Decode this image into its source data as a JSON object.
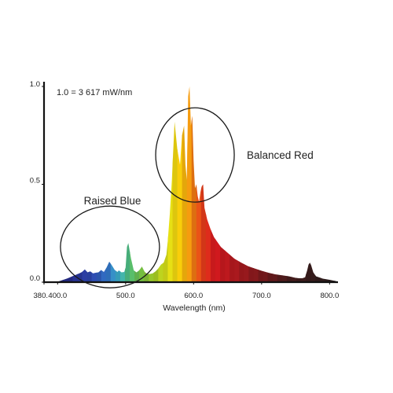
{
  "chart_data": {
    "type": "area",
    "title": "",
    "xlabel": "Wavelength (nm)",
    "ylabel": "",
    "xlim": [
      380,
      810
    ],
    "ylim": [
      0,
      1.0
    ],
    "x_ticks": [
      {
        "value": 380,
        "label": "380."
      },
      {
        "value": 400,
        "label": "400.0"
      },
      {
        "value": 500,
        "label": "500.0"
      },
      {
        "value": 600,
        "label": "600.0"
      },
      {
        "value": 700,
        "label": "700.0"
      },
      {
        "value": 800,
        "label": "800.0"
      }
    ],
    "y_ticks": [
      {
        "value": 0.0,
        "label": "0.0"
      },
      {
        "value": 0.5,
        "label": "0.5"
      },
      {
        "value": 1.0,
        "label": "1.0"
      }
    ],
    "scale_note": "1.0 = 3 617 mW/nm",
    "series": [
      {
        "x": [
          380,
          398,
          405,
          415,
          425,
          432,
          436,
          440,
          444,
          448,
          452,
          456,
          460,
          464,
          468,
          472,
          476,
          480,
          484,
          488,
          490,
          494,
          498,
          500,
          502,
          504,
          508,
          512,
          516,
          520,
          524,
          528,
          532,
          536,
          540,
          544,
          548,
          552,
          556,
          560,
          562,
          565,
          568,
          572,
          576,
          580,
          583,
          586,
          588,
          590,
          592,
          594,
          596,
          598,
          600,
          602,
          604,
          606,
          608,
          610,
          612,
          614,
          616,
          620,
          625,
          630,
          640,
          650,
          660,
          670,
          680,
          690,
          700,
          710,
          720,
          730,
          740,
          745,
          750,
          755,
          760,
          764,
          767,
          769,
          771,
          773,
          776,
          780,
          790,
          800,
          810
        ],
        "y": [
          0,
          0,
          0.008,
          0.02,
          0.035,
          0.045,
          0.052,
          0.065,
          0.05,
          0.055,
          0.045,
          0.048,
          0.05,
          0.062,
          0.052,
          0.075,
          0.105,
          0.085,
          0.062,
          0.052,
          0.06,
          0.05,
          0.052,
          0.075,
          0.18,
          0.2,
          0.12,
          0.06,
          0.05,
          0.06,
          0.08,
          0.052,
          0.042,
          0.042,
          0.045,
          0.055,
          0.07,
          0.09,
          0.1,
          0.14,
          0.21,
          0.35,
          0.52,
          0.82,
          0.68,
          0.6,
          0.75,
          0.8,
          0.6,
          0.52,
          0.95,
          1.0,
          0.8,
          0.85,
          0.62,
          0.48,
          0.5,
          0.44,
          0.41,
          0.46,
          0.49,
          0.5,
          0.38,
          0.32,
          0.27,
          0.23,
          0.18,
          0.15,
          0.12,
          0.1,
          0.082,
          0.07,
          0.058,
          0.048,
          0.04,
          0.035,
          0.03,
          0.026,
          0.022,
          0.02,
          0.02,
          0.025,
          0.06,
          0.09,
          0.1,
          0.085,
          0.05,
          0.03,
          0.018,
          0.012,
          0.005
        ]
      }
    ],
    "annotations": [
      {
        "text": "Raised Blue",
        "center_nm": 477,
        "center_value": 0.18
      },
      {
        "text": "Balanced Red",
        "center_nm": 602,
        "center_value": 0.65
      }
    ],
    "grid": false,
    "legend": "none"
  }
}
